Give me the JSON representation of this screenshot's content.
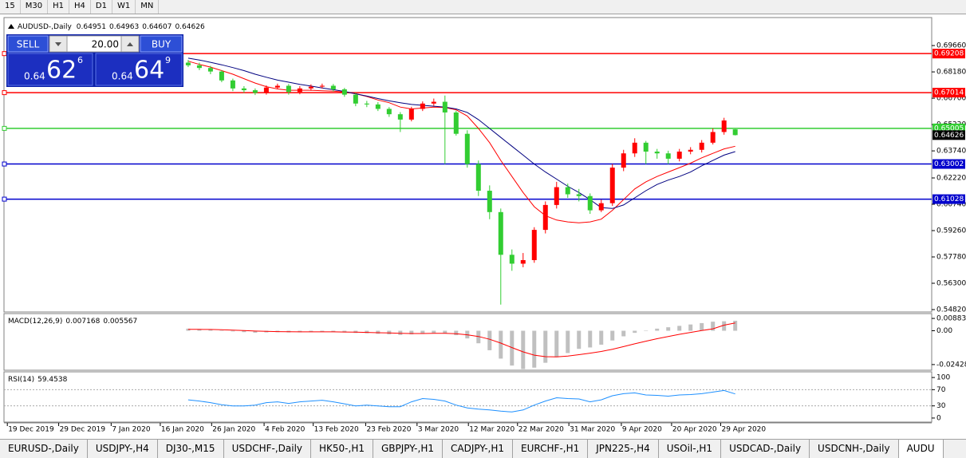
{
  "toolbar": {
    "timeframes": [
      "15",
      "M30",
      "H1",
      "H4",
      "D1",
      "W1",
      "MN"
    ]
  },
  "trade_panel": {
    "sell_label": "SELL",
    "buy_label": "BUY",
    "lot": "20.00",
    "sell_price": [
      "0.64",
      "62",
      "6"
    ],
    "buy_price": [
      "0.64",
      "64",
      "9"
    ]
  },
  "chart_data": [
    {
      "type": "candlestick",
      "symbol": "AUDUSD-,Daily",
      "up_color": "#ff0000",
      "down_color": "#32cd32",
      "open": [
        0.687,
        0.6855,
        0.684,
        0.682,
        0.677,
        0.6725,
        0.6715,
        0.67,
        0.673,
        0.674,
        0.6705,
        0.6725,
        0.6735,
        0.674,
        0.672,
        0.669,
        0.664,
        0.6635,
        0.661,
        0.658,
        0.655,
        0.661,
        0.664,
        0.665,
        0.659,
        0.647,
        0.63,
        0.615,
        0.603,
        0.579,
        0.574,
        0.576,
        0.593,
        0.607,
        0.617,
        0.613,
        0.612,
        0.604,
        0.608,
        0.628,
        0.636,
        0.642,
        0.637,
        0.636,
        0.633,
        0.637,
        0.638,
        0.642,
        0.648,
        0.64951
      ],
      "high": [
        0.6885,
        0.687,
        0.6852,
        0.6828,
        0.678,
        0.6738,
        0.6725,
        0.6742,
        0.6752,
        0.675,
        0.6738,
        0.6748,
        0.6752,
        0.675,
        0.6728,
        0.67,
        0.6655,
        0.6648,
        0.662,
        0.6592,
        0.6622,
        0.6652,
        0.6668,
        0.6685,
        0.66,
        0.649,
        0.632,
        0.618,
        0.605,
        0.582,
        0.58,
        0.5945,
        0.609,
        0.62,
        0.619,
        0.616,
        0.6135,
        0.61,
        0.63,
        0.638,
        0.6445,
        0.643,
        0.6385,
        0.6375,
        0.6385,
        0.6395,
        0.6435,
        0.65,
        0.656,
        0.64963
      ],
      "low": [
        0.6845,
        0.6828,
        0.6805,
        0.676,
        0.671,
        0.67,
        0.6688,
        0.669,
        0.672,
        0.669,
        0.6692,
        0.6712,
        0.6725,
        0.6708,
        0.6678,
        0.6625,
        0.662,
        0.6598,
        0.6565,
        0.648,
        0.654,
        0.6598,
        0.6628,
        0.63,
        0.646,
        0.628,
        0.612,
        0.599,
        0.551,
        0.57,
        0.572,
        0.5745,
        0.591,
        0.605,
        0.611,
        0.609,
        0.602,
        0.603,
        0.6065,
        0.626,
        0.634,
        0.63,
        0.633,
        0.63,
        0.6315,
        0.6355,
        0.6365,
        0.641,
        0.6465,
        0.64607
      ],
      "close": [
        0.6855,
        0.684,
        0.682,
        0.677,
        0.6725,
        0.6715,
        0.67,
        0.673,
        0.674,
        0.6705,
        0.6725,
        0.6735,
        0.674,
        0.672,
        0.669,
        0.664,
        0.6635,
        0.661,
        0.658,
        0.655,
        0.661,
        0.664,
        0.665,
        0.659,
        0.647,
        0.63,
        0.615,
        0.603,
        0.579,
        0.574,
        0.576,
        0.593,
        0.607,
        0.617,
        0.613,
        0.612,
        0.604,
        0.608,
        0.628,
        0.636,
        0.642,
        0.637,
        0.636,
        0.633,
        0.637,
        0.638,
        0.642,
        0.648,
        0.6545,
        0.64626
      ],
      "ma": [
        {
          "color": "#ff0000",
          "values": [
            0.6878,
            0.686,
            0.6845,
            0.6825,
            0.6805,
            0.678,
            0.6755,
            0.6735,
            0.6722,
            0.6715,
            0.6715,
            0.6715,
            0.6712,
            0.671,
            0.6705,
            0.6695,
            0.668,
            0.666,
            0.6645,
            0.662,
            0.661,
            0.6615,
            0.662,
            0.6618,
            0.6605,
            0.657,
            0.65,
            0.642,
            0.632,
            0.623,
            0.614,
            0.606,
            0.601,
            0.5985,
            0.5975,
            0.597,
            0.5975,
            0.599,
            0.604,
            0.61,
            0.616,
            0.62,
            0.623,
            0.6255,
            0.628,
            0.6305,
            0.6335,
            0.636,
            0.6385,
            0.64
          ]
        },
        {
          "color": "#000080",
          "values": [
            0.6895,
            0.6885,
            0.6872,
            0.6858,
            0.6842,
            0.6825,
            0.6805,
            0.6788,
            0.6772,
            0.676,
            0.6748,
            0.6738,
            0.6728,
            0.6718,
            0.6708,
            0.6695,
            0.6682,
            0.6668,
            0.6655,
            0.6645,
            0.6635,
            0.663,
            0.6625,
            0.662,
            0.661,
            0.659,
            0.655,
            0.65,
            0.645,
            0.64,
            0.635,
            0.63,
            0.6255,
            0.6215,
            0.6175,
            0.614,
            0.61,
            0.6055,
            0.605,
            0.607,
            0.611,
            0.615,
            0.6185,
            0.621,
            0.623,
            0.6255,
            0.629,
            0.632,
            0.635,
            0.637
          ]
        }
      ],
      "levels": [
        {
          "value": 0.69208,
          "color": "#ff0000"
        },
        {
          "value": 0.67014,
          "color": "#ff0000"
        },
        {
          "value": 0.65005,
          "color": "#32cd32"
        },
        {
          "value": 0.63002,
          "color": "#0000cd"
        },
        {
          "value": 0.61028,
          "color": "#0000cd"
        }
      ],
      "ylim": [
        0.54685,
        0.71234
      ],
      "yticks": [
        {
          "value": 0.6966,
          "label": "0.69660"
        },
        {
          "value": 0.6818,
          "label": "0.68180"
        },
        {
          "value": 0.667,
          "label": "0.66700"
        },
        {
          "value": 0.6522,
          "label": "0.65220"
        },
        {
          "value": 0.6374,
          "label": "0.63740"
        },
        {
          "value": 0.6222,
          "label": "0.62220"
        },
        {
          "value": 0.6074,
          "label": "0.60740"
        },
        {
          "value": 0.5926,
          "label": "0.59260"
        },
        {
          "value": 0.5778,
          "label": "0.57780"
        },
        {
          "value": 0.563,
          "label": "0.56300"
        },
        {
          "value": 0.5482,
          "label": "0.54820"
        }
      ],
      "xlim": [
        -16.5,
        66.6
      ],
      "xticks": [
        {
          "value": -16.2,
          "label": "19 Dec 2019"
        },
        {
          "value": -11.6,
          "label": "29 Dec 2019"
        },
        {
          "value": -6.9,
          "label": "7 Jan 2020"
        },
        {
          "value": -2.5,
          "label": "16 Jan 2020"
        },
        {
          "value": 2.1,
          "label": "26 Jan 2020"
        },
        {
          "value": 6.8,
          "label": "4 Feb 2020"
        },
        {
          "value": 11.2,
          "label": "13 Feb 2020"
        },
        {
          "value": 15.9,
          "label": "23 Feb 2020"
        },
        {
          "value": 20.5,
          "label": "3 Mar 2020"
        },
        {
          "value": 25.1,
          "label": "12 Mar 2020"
        },
        {
          "value": 29.5,
          "label": "22 Mar 2020"
        },
        {
          "value": 34.1,
          "label": "31 Mar 2020"
        },
        {
          "value": 38.8,
          "label": "9 Apr 2020"
        },
        {
          "value": 43.3,
          "label": "20 Apr 2020"
        },
        {
          "value": 47.7,
          "label": "29 Apr 2020"
        }
      ]
    },
    {
      "type": "macd",
      "name": "MACD(12,26,9)",
      "hist_color": "#c0c0c0",
      "signal_color": "#ff0000",
      "histogram": [
        0.0015,
        0.0012,
        0.0008,
        0.0002,
        -0.0005,
        -0.001,
        -0.0014,
        -0.0012,
        -0.001,
        -0.0012,
        -0.0011,
        -0.0009,
        -0.0008,
        -0.0009,
        -0.0012,
        -0.0016,
        -0.0018,
        -0.0022,
        -0.0026,
        -0.003,
        -0.0026,
        -0.002,
        -0.0016,
        -0.002,
        -0.0032,
        -0.0055,
        -0.009,
        -0.014,
        -0.02,
        -0.025,
        -0.0275,
        -0.0265,
        -0.023,
        -0.019,
        -0.016,
        -0.013,
        -0.012,
        -0.01,
        -0.007,
        -0.004,
        -0.0015,
        0.0,
        0.0015,
        0.0025,
        0.0035,
        0.0045,
        0.0055,
        0.0065,
        0.0068,
        0.007168
      ],
      "signal": [
        0.001,
        0.001,
        0.0009,
        0.0007,
        0.0004,
        0.0001,
        -0.0002,
        -0.0004,
        -0.0006,
        -0.0007,
        -0.0008,
        -0.0008,
        -0.0008,
        -0.0008,
        -0.0009,
        -0.001,
        -0.0012,
        -0.0014,
        -0.0016,
        -0.0019,
        -0.002,
        -0.002,
        -0.0019,
        -0.0019,
        -0.0022,
        -0.0029,
        -0.0041,
        -0.0061,
        -0.0089,
        -0.0121,
        -0.0152,
        -0.0175,
        -0.0186,
        -0.0187,
        -0.0182,
        -0.0172,
        -0.0161,
        -0.0149,
        -0.0133,
        -0.0114,
        -0.0094,
        -0.0075,
        -0.0057,
        -0.0041,
        -0.0026,
        -0.0012,
        0.0001,
        0.0014,
        0.004,
        0.005567
      ],
      "ylim": [
        -0.02835,
        0.01232
      ],
      "yticks": [
        0.008833,
        {
          "value": 0,
          "label": "0.00"
        },
        -0.024281
      ]
    },
    {
      "type": "rsi",
      "name": "RSI(14)",
      "color": "#1e90ff",
      "values": [
        45,
        42,
        38,
        33,
        30,
        30,
        32,
        38,
        40,
        36,
        40,
        42,
        44,
        40,
        35,
        30,
        32,
        30,
        28,
        28,
        40,
        48,
        46,
        42,
        32,
        25,
        22,
        20,
        17,
        15,
        20,
        32,
        42,
        50,
        48,
        47,
        40,
        45,
        55,
        60,
        62,
        57,
        56,
        54,
        57,
        58,
        60,
        64,
        68,
        59.4538
      ],
      "levels": [
        70,
        30
      ],
      "ylim": [
        -10,
        114
      ],
      "yticks": [
        100,
        70,
        30,
        0
      ]
    }
  ],
  "tabs": [
    "EURUSD-,Daily",
    "USDJPY-,H4",
    "DJ30-,M15",
    "USDCHF-,Daily",
    "HK50-,H1",
    "GBPJPY-,H1",
    "CADJPY-,H1",
    "EURCHF-,H1",
    "JPN225-,H4",
    "USOil-,H1",
    "USDCAD-,Daily",
    "USDCNH-,Daily",
    "AUDU"
  ]
}
